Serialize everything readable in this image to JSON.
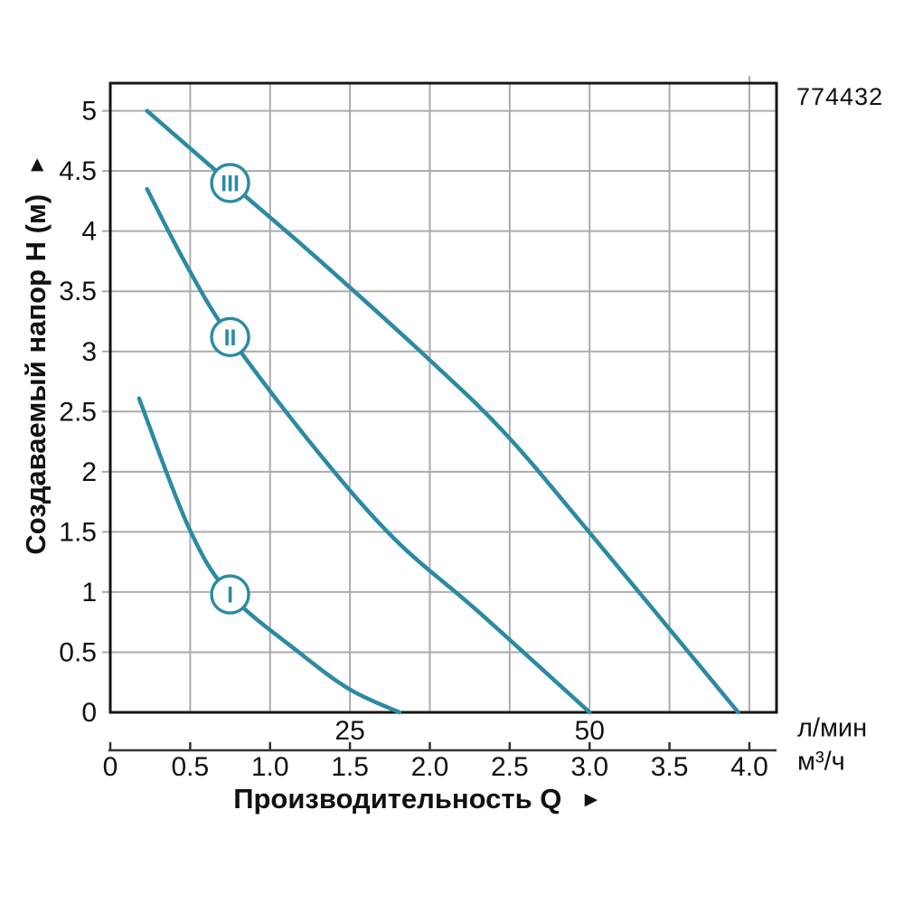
{
  "product_code": "774432",
  "colors": {
    "curve": "#2c8aa3",
    "marker_fill": "#ffffff",
    "grid": "#ababab",
    "frame": "#151515",
    "axis": "#333333",
    "text": "#111111"
  },
  "chart_data": {
    "type": "line",
    "title": "",
    "xlabel": "Производительность Q",
    "xlabel_arrow": "►",
    "ylabel": "Создаваемый напор H (м)",
    "ylabel_arrow": "►",
    "x_primary_unit": "м³/ч",
    "x_secondary_unit": "л/мин",
    "x_m3h_tick_labels": [
      "0",
      "0.5",
      "1.0",
      "1.5",
      "2.0",
      "2.5",
      "3.0",
      "3.5",
      "4.0"
    ],
    "x_lmin_ticks": [
      {
        "label": "25",
        "m3h_pos": 1.5
      },
      {
        "label": "50",
        "m3h_pos": 3.0
      }
    ],
    "y_tick_labels": [
      "0",
      "0.5",
      "1",
      "1.5",
      "2",
      "2.5",
      "3",
      "3.5",
      "4",
      "4.5",
      "5"
    ],
    "xlim_m3h": [
      0,
      4.17
    ],
    "ylim": [
      0,
      5.23
    ],
    "lmin_per_m3h": 16.667,
    "grid": true,
    "legend": "none",
    "series": [
      {
        "name": "III",
        "points": [
          [
            0.23,
            5.0
          ],
          [
            0.75,
            4.4
          ],
          [
            1.29,
            3.78
          ],
          [
            1.99,
            2.94
          ],
          [
            2.47,
            2.32
          ],
          [
            2.99,
            1.51
          ],
          [
            3.93,
            0
          ]
        ]
      },
      {
        "name": "II",
        "points": [
          [
            0.23,
            4.35
          ],
          [
            0.48,
            3.71
          ],
          [
            0.75,
            3.12
          ],
          [
            1.29,
            2.18
          ],
          [
            1.78,
            1.44
          ],
          [
            2.31,
            0.83
          ],
          [
            3.0,
            0
          ]
        ]
      },
      {
        "name": "I",
        "points": [
          [
            0.18,
            2.61
          ],
          [
            0.49,
            1.54
          ],
          [
            0.75,
            0.98
          ],
          [
            1.18,
            0.5
          ],
          [
            1.5,
            0.19
          ],
          [
            1.81,
            0
          ]
        ]
      }
    ],
    "markers": [
      {
        "label": "III",
        "q": 0.75,
        "h": 4.4
      },
      {
        "label": "II",
        "q": 0.75,
        "h": 3.12
      },
      {
        "label": "I",
        "q": 0.75,
        "h": 0.98
      }
    ]
  }
}
